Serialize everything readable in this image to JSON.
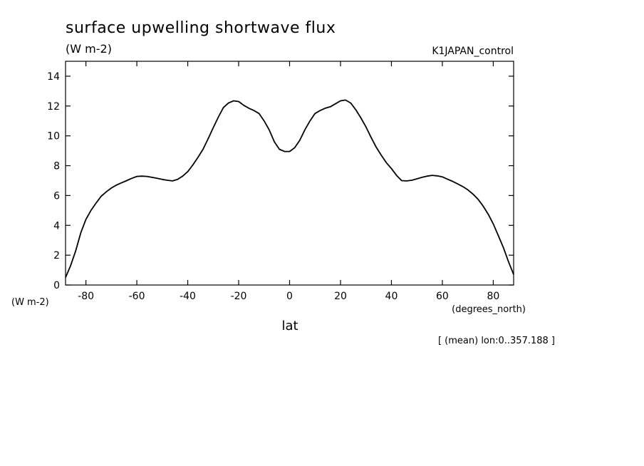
{
  "chart_data": {
    "type": "line",
    "title": "surface upwelling shortwave flux",
    "units": "(W m-2)",
    "run_label": "K1JAPAN_control",
    "y_axis_units": "(W m-2)",
    "x_axis_units": "(degrees_north)",
    "xlabel": "lat",
    "ylabel": "",
    "footnote": "[ (mean) lon:0..357.188 ]",
    "xlim": [
      -88,
      88
    ],
    "ylim": [
      0,
      15
    ],
    "x_ticks": [
      -80,
      -60,
      -40,
      -20,
      0,
      20,
      40,
      60,
      80
    ],
    "y_ticks": [
      0,
      2,
      4,
      6,
      8,
      10,
      12,
      14
    ],
    "x_tick_labels": [
      "-80",
      "-60",
      "-40",
      "-20",
      "0",
      "20",
      "40",
      "60",
      "80"
    ],
    "y_tick_labels": [
      "0",
      "2",
      "4",
      "6",
      "8",
      "10",
      "12",
      "14"
    ],
    "grid": false,
    "line_color": "#000000",
    "series": [
      {
        "x": [
          -88,
          -86,
          -84,
          -82,
          -80,
          -78,
          -76,
          -74,
          -72,
          -70,
          -68,
          -66,
          -64,
          -62,
          -60,
          -58,
          -56,
          -54,
          -52,
          -50,
          -48,
          -46,
          -44,
          -42,
          -40,
          -38,
          -36,
          -34,
          -32,
          -30,
          -28,
          -26,
          -24,
          -22,
          -20,
          -18,
          -16,
          -14,
          -12,
          -10,
          -8,
          -6,
          -4,
          -2,
          0,
          2,
          4,
          6,
          8,
          10,
          12,
          14,
          16,
          18,
          20,
          22,
          24,
          26,
          28,
          30,
          32,
          34,
          36,
          38,
          40,
          42,
          44,
          46,
          48,
          50,
          52,
          54,
          56,
          58,
          60,
          62,
          64,
          66,
          68,
          70,
          72,
          74,
          76,
          78,
          80,
          82,
          84,
          86,
          88
        ],
        "values": [
          0.5,
          1.3,
          2.3,
          3.5,
          4.4,
          5.0,
          5.5,
          5.95,
          6.25,
          6.5,
          6.7,
          6.85,
          7.0,
          7.15,
          7.28,
          7.3,
          7.28,
          7.22,
          7.15,
          7.08,
          7.02,
          6.98,
          7.08,
          7.3,
          7.6,
          8.05,
          8.55,
          9.1,
          9.8,
          10.55,
          11.25,
          11.9,
          12.2,
          12.35,
          12.3,
          12.05,
          11.85,
          11.7,
          11.5,
          11.0,
          10.4,
          9.6,
          9.1,
          8.95,
          8.95,
          9.2,
          9.7,
          10.4,
          11.0,
          11.5,
          11.7,
          11.85,
          11.95,
          12.15,
          12.35,
          12.4,
          12.2,
          11.75,
          11.2,
          10.6,
          9.9,
          9.25,
          8.7,
          8.2,
          7.8,
          7.35,
          7.0,
          6.98,
          7.02,
          7.12,
          7.22,
          7.3,
          7.35,
          7.32,
          7.25,
          7.1,
          6.95,
          6.78,
          6.6,
          6.38,
          6.1,
          5.75,
          5.3,
          4.75,
          4.1,
          3.3,
          2.5,
          1.55,
          0.7
        ]
      }
    ]
  }
}
